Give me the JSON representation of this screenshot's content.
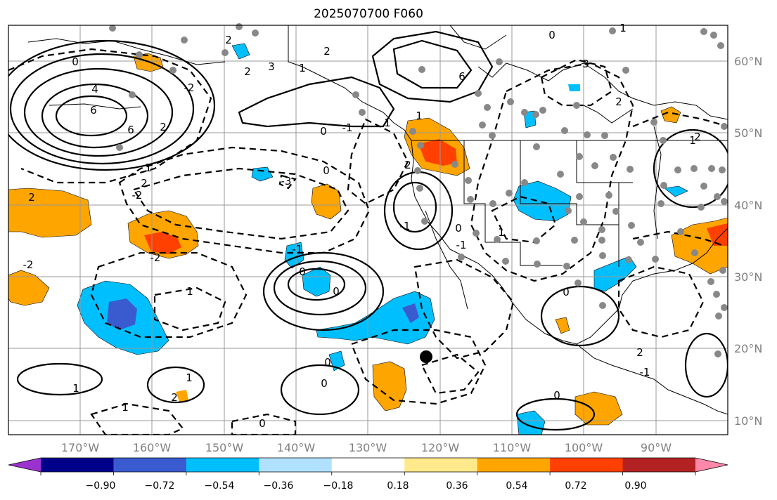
{
  "title": "2025070700 F060",
  "longitude_labels": [
    "170°W",
    "160°W",
    "150°W",
    "140°W",
    "130°W",
    "120°W",
    "110°W",
    "100°W",
    "90°W"
  ],
  "latitude_labels": [
    "60°N",
    "50°N",
    "40°N",
    "30°N",
    "20°N",
    "10°N"
  ],
  "colorbar": {
    "tick_labels": [
      "−0.90",
      "−0.72",
      "−0.54",
      "−0.36",
      "−0.18",
      "0.18",
      "0.36",
      "0.54",
      "0.72",
      "0.90"
    ],
    "colors": [
      "#9b32d0",
      "#00008b",
      "#3a5bd0",
      "#00bfff",
      "#b0e2ff",
      "#ffffff",
      "#ffe98a",
      "#ffa500",
      "#ff4000",
      "#b22222",
      "#ff88aa"
    ]
  },
  "contour_labels": [
    "0",
    "4",
    "6",
    "6",
    "2",
    "1",
    "2",
    "3",
    "2",
    "1",
    "2",
    "-2",
    "0",
    "-1",
    "1",
    "6",
    "0",
    "3",
    "1",
    "2",
    "2",
    "0",
    "-3",
    "2",
    "-2",
    "2",
    "-2",
    "-2",
    "1",
    "-1",
    "0",
    "0",
    "-1",
    "1",
    "2",
    "0",
    "-1",
    "1",
    "0",
    "0",
    "0",
    "0",
    "1",
    "1",
    "2",
    "1",
    "0",
    "-1",
    "2",
    "1"
  ]
}
